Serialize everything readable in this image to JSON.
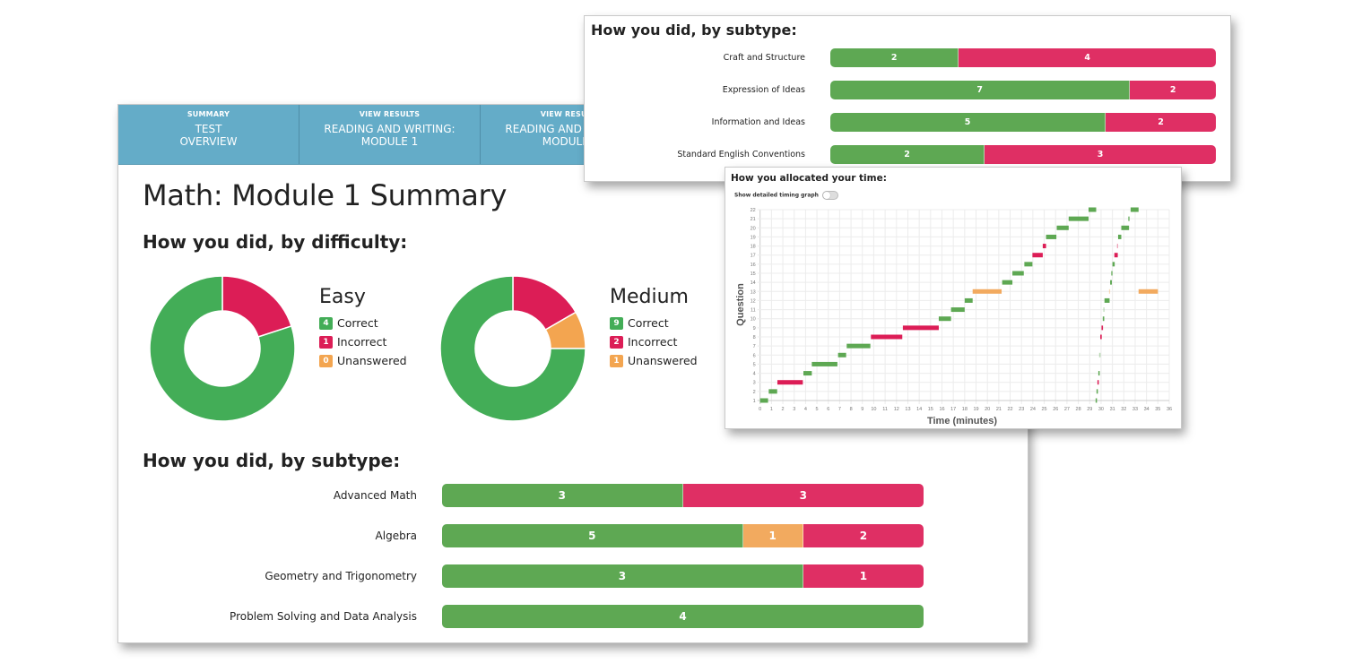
{
  "colors": {
    "correct": "#5ea853",
    "incorrect": "#df2f64",
    "unanswered": "#f2aa5f",
    "donut_correct": "#43ad57",
    "donut_incorrect": "#dc1d56",
    "donut_unanswered": "#f3a550",
    "header_bg": "#64acc8"
  },
  "main": {
    "tabs": [
      {
        "kicker": "SUMMARY",
        "title": "TEST\nOVERVIEW"
      },
      {
        "kicker": "VIEW RESULTS",
        "title": "READING AND WRITING:\nMODULE 1"
      },
      {
        "kicker": "VIEW RESULTS",
        "title": "READING AND WRITING:\nMODULE 2"
      }
    ],
    "page_title": "Math: Module 1 Summary",
    "difficulty_title": "How you did, by difficulty:",
    "subtype_title": "How you did, by subtype:",
    "legend_labels": {
      "correct": "Correct",
      "incorrect": "Incorrect",
      "unanswered": "Unanswered"
    }
  },
  "chart_data": [
    {
      "type": "pie",
      "title": "Easy",
      "variant": "donut",
      "categories": [
        "Incorrect",
        "Unanswered",
        "Correct"
      ],
      "values": [
        1,
        0,
        4
      ]
    },
    {
      "type": "pie",
      "title": "Medium",
      "variant": "donut",
      "categories": [
        "Incorrect",
        "Unanswered",
        "Correct"
      ],
      "values": [
        2,
        1,
        9
      ]
    },
    {
      "type": "bar",
      "orientation": "horizontal-stacked",
      "title": "How you did, by subtype:",
      "categories": [
        "Advanced Math",
        "Algebra",
        "Geometry and Trigonometry",
        "Problem Solving and Data Analysis"
      ],
      "series": [
        {
          "name": "Correct",
          "values": [
            3,
            5,
            3,
            4
          ]
        },
        {
          "name": "Unanswered",
          "values": [
            0,
            1,
            0,
            0
          ]
        },
        {
          "name": "Incorrect",
          "values": [
            3,
            2,
            1,
            0
          ]
        }
      ]
    },
    {
      "type": "bar",
      "orientation": "horizontal-stacked",
      "title": "How you did, by subtype:",
      "categories": [
        "Craft and Structure",
        "Expression of Ideas",
        "Information and Ideas",
        "Standard English Conventions"
      ],
      "series": [
        {
          "name": "Correct",
          "values": [
            2,
            7,
            5,
            2
          ]
        },
        {
          "name": "Unanswered",
          "values": [
            0,
            0,
            0,
            0
          ]
        },
        {
          "name": "Incorrect",
          "values": [
            4,
            2,
            2,
            3
          ]
        }
      ]
    },
    {
      "type": "scatter",
      "variant": "gantt",
      "title": "How you allocated your time:",
      "toggle_label": "Show detailed timing graph",
      "toggle_on": false,
      "xlabel": "Time (minutes)",
      "ylabel": "Question",
      "xlim": [
        0,
        36
      ],
      "ylim": [
        1,
        22
      ],
      "grid": true,
      "segments": [
        {
          "q": 1,
          "start": 0.0,
          "end": 0.7,
          "status": "correct"
        },
        {
          "q": 2,
          "start": 0.76,
          "end": 1.5,
          "status": "correct"
        },
        {
          "q": 3,
          "start": 1.52,
          "end": 3.76,
          "status": "incorrect"
        },
        {
          "q": 4,
          "start": 3.81,
          "end": 4.55,
          "status": "correct"
        },
        {
          "q": 5,
          "start": 4.55,
          "end": 6.8,
          "status": "correct"
        },
        {
          "q": 6,
          "start": 6.86,
          "end": 7.57,
          "status": "correct"
        },
        {
          "q": 7,
          "start": 7.62,
          "end": 9.7,
          "status": "correct"
        },
        {
          "q": 8,
          "start": 9.75,
          "end": 12.51,
          "status": "incorrect"
        },
        {
          "q": 9,
          "start": 12.56,
          "end": 15.72,
          "status": "incorrect"
        },
        {
          "q": 10,
          "start": 15.72,
          "end": 16.8,
          "status": "correct"
        },
        {
          "q": 11,
          "start": 16.8,
          "end": 18.0,
          "status": "correct"
        },
        {
          "q": 12,
          "start": 18.0,
          "end": 18.7,
          "status": "correct"
        },
        {
          "q": 13,
          "start": 18.7,
          "end": 21.25,
          "status": "unanswered"
        },
        {
          "q": 14,
          "start": 21.3,
          "end": 22.2,
          "status": "correct"
        },
        {
          "q": 15,
          "start": 22.2,
          "end": 23.2,
          "status": "correct"
        },
        {
          "q": 16,
          "start": 23.25,
          "end": 23.96,
          "status": "correct"
        },
        {
          "q": 17,
          "start": 23.96,
          "end": 24.87,
          "status": "incorrect"
        },
        {
          "q": 18,
          "start": 24.87,
          "end": 25.16,
          "status": "incorrect"
        },
        {
          "q": 19,
          "start": 25.16,
          "end": 26.07,
          "status": "correct"
        },
        {
          "q": 20,
          "start": 26.1,
          "end": 27.15,
          "status": "correct"
        },
        {
          "q": 21,
          "start": 27.15,
          "end": 28.9,
          "status": "correct"
        },
        {
          "q": 22,
          "start": 28.9,
          "end": 29.57,
          "status": "correct"
        },
        {
          "q": 1,
          "start": 29.52,
          "end": 29.64,
          "status": "correct"
        },
        {
          "q": 2,
          "start": 29.6,
          "end": 29.72,
          "status": "correct"
        },
        {
          "q": 3,
          "start": 29.68,
          "end": 29.8,
          "status": "incorrect"
        },
        {
          "q": 4,
          "start": 29.76,
          "end": 29.88,
          "status": "correct"
        },
        {
          "q": 6,
          "start": 29.83,
          "end": 29.96,
          "status": "correct",
          "faint": true
        },
        {
          "q": 8,
          "start": 29.93,
          "end": 30.06,
          "status": "incorrect"
        },
        {
          "q": 9,
          "start": 30.04,
          "end": 30.17,
          "status": "incorrect"
        },
        {
          "q": 10,
          "start": 30.15,
          "end": 30.28,
          "status": "correct"
        },
        {
          "q": 11,
          "start": 30.2,
          "end": 30.3,
          "status": "correct",
          "faint": true
        },
        {
          "q": 12,
          "start": 30.3,
          "end": 30.75,
          "status": "correct"
        },
        {
          "q": 13,
          "start": 30.7,
          "end": 30.8,
          "status": "unanswered",
          "faint": true
        },
        {
          "q": 14,
          "start": 30.8,
          "end": 30.95,
          "status": "correct"
        },
        {
          "q": 15,
          "start": 30.9,
          "end": 31.0,
          "status": "correct"
        },
        {
          "q": 16,
          "start": 31.0,
          "end": 31.2,
          "status": "correct"
        },
        {
          "q": 17,
          "start": 31.17,
          "end": 31.47,
          "status": "incorrect"
        },
        {
          "q": 18,
          "start": 31.4,
          "end": 31.5,
          "status": "incorrect",
          "faint": true
        },
        {
          "q": 19,
          "start": 31.5,
          "end": 31.78,
          "status": "correct"
        },
        {
          "q": 20,
          "start": 31.78,
          "end": 32.46,
          "status": "correct"
        },
        {
          "q": 21,
          "start": 32.4,
          "end": 32.5,
          "status": "correct"
        },
        {
          "q": 22,
          "start": 32.6,
          "end": 33.3,
          "status": "correct"
        },
        {
          "q": 13,
          "start": 33.3,
          "end": 35.0,
          "status": "unanswered"
        }
      ]
    }
  ]
}
